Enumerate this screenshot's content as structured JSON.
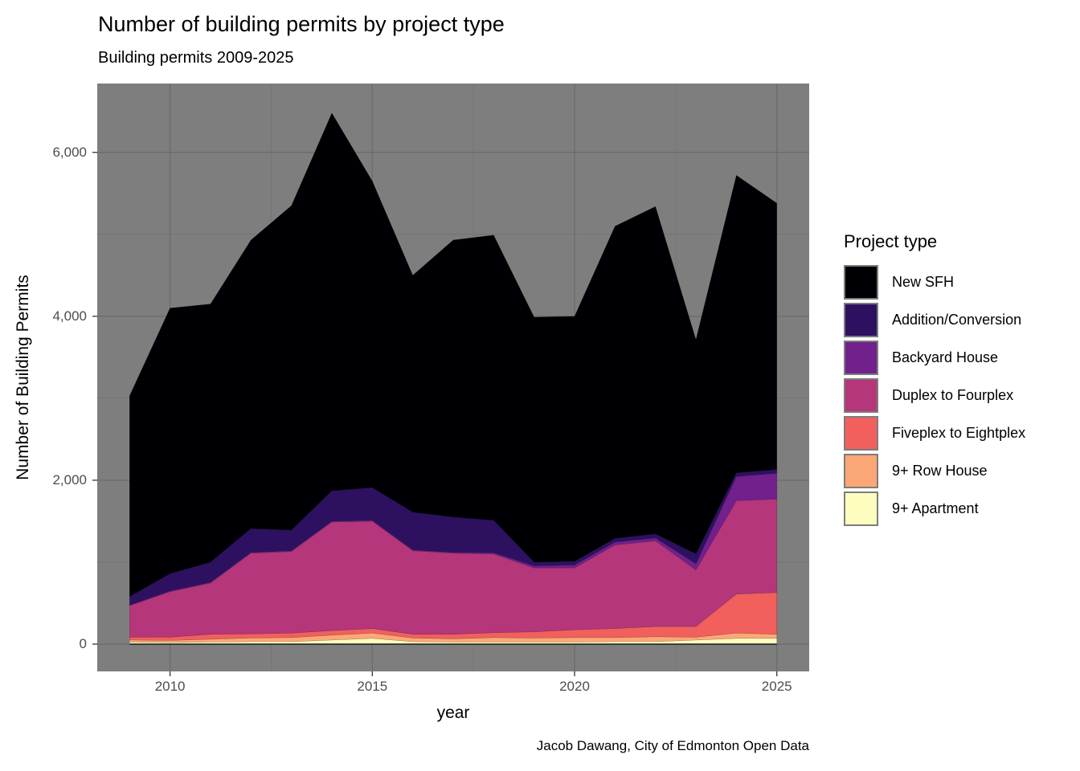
{
  "chart_data": {
    "type": "area",
    "stacked": true,
    "title": "Number of building permits by project type",
    "subtitle": "Building permits 2009-2025",
    "xlabel": "year",
    "ylabel": "Number of Building Permits",
    "caption": "Jacob Dawang, City of Edmonton Open Data",
    "legend_title": "Project type",
    "legend_position": "right",
    "grid": true,
    "x": [
      2009,
      2010,
      2011,
      2012,
      2013,
      2014,
      2015,
      2016,
      2017,
      2018,
      2019,
      2020,
      2021,
      2022,
      2023,
      2024,
      2025
    ],
    "series_note": "series listed in legend order = top of stack first; stack is built bottom-up from the last series",
    "series": [
      {
        "name": "New SFH",
        "color": "#000004",
        "values": [
          2450,
          3240,
          3150,
          3520,
          3960,
          4610,
          3740,
          2890,
          3380,
          3480,
          2990,
          2990,
          3810,
          3995,
          2615,
          3630,
          3250
        ]
      },
      {
        "name": "Addition/Conversion",
        "color": "#2D1160",
        "values": [
          105,
          210,
          245,
          290,
          250,
          370,
          400,
          460,
          430,
          395,
          45,
          45,
          45,
          50,
          120,
          45,
          45
        ]
      },
      {
        "name": "Backyard House",
        "color": "#71208C",
        "values": [
          5,
          10,
          10,
          10,
          10,
          10,
          10,
          10,
          10,
          15,
          25,
          35,
          35,
          35,
          75,
          295,
          315
        ]
      },
      {
        "name": "Duplex to Fourplex",
        "color": "#B5367A",
        "values": [
          385,
          555,
          625,
          985,
          995,
          1325,
          1310,
          1020,
          990,
          960,
          780,
          755,
          1020,
          1045,
          690,
          1140,
          1140
        ]
      },
      {
        "name": "Fiveplex to Eightplex",
        "color": "#F1605D",
        "values": [
          35,
          40,
          60,
          50,
          55,
          55,
          55,
          45,
          55,
          60,
          75,
          95,
          110,
          125,
          130,
          475,
          510
        ]
      },
      {
        "name": "9+ Row House",
        "color": "#FCA876",
        "values": [
          25,
          25,
          35,
          45,
          50,
          60,
          65,
          45,
          40,
          55,
          50,
          55,
          50,
          60,
          35,
          65,
          50
        ]
      },
      {
        "name": "9+ Apartment",
        "color": "#FCFDBF",
        "values": [
          25,
          20,
          25,
          30,
          30,
          50,
          70,
          30,
          25,
          25,
          25,
          25,
          30,
          30,
          50,
          70,
          70
        ]
      }
    ],
    "totals": [
      3030,
      4100,
      4150,
      4930,
      5350,
      6480,
      5650,
      4500,
      4930,
      4990,
      3990,
      4000,
      5100,
      5340,
      3715,
      5720,
      5380
    ],
    "x_ticks": [
      {
        "value": 2010,
        "label": "2010"
      },
      {
        "value": 2015,
        "label": "2015"
      },
      {
        "value": 2020,
        "label": "2020"
      },
      {
        "value": 2025,
        "label": "2025"
      }
    ],
    "y_ticks": [
      {
        "value": 0,
        "label": "0"
      },
      {
        "value": 2000,
        "label": "2,000"
      },
      {
        "value": 4000,
        "label": "4,000"
      },
      {
        "value": 6000,
        "label": "6,000"
      }
    ],
    "x_minor_gridlines": [
      2012.5,
      2017.5,
      2022.5
    ],
    "y_minor_gridlines": [
      1000,
      3000,
      5000
    ],
    "axis_ranges": {
      "x": [
        2008.2,
        2025.8
      ],
      "y": [
        -333,
        6840
      ]
    },
    "style": {
      "panel_background": "#7E7E7E",
      "grid_major_color": "#6A6A6A",
      "grid_minor_color": "#727272",
      "axis_text_color": "#4D4D4D",
      "tick_mark_color": "#333333",
      "baseline_color": "#000004",
      "legend_key_border": "#7c7c7c"
    }
  }
}
